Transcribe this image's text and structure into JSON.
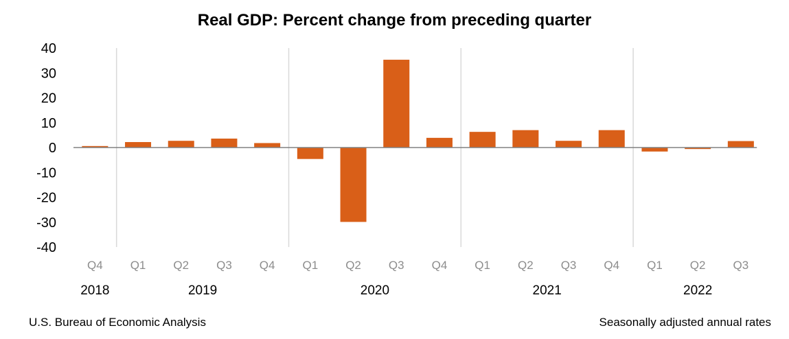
{
  "chart_data": {
    "type": "bar",
    "title": "Real GDP:  Percent change from preceding quarter",
    "categories": [
      "Q4",
      "Q1",
      "Q2",
      "Q3",
      "Q4",
      "Q1",
      "Q2",
      "Q3",
      "Q4",
      "Q1",
      "Q2",
      "Q3",
      "Q4",
      "Q1",
      "Q2",
      "Q3"
    ],
    "category_years": [
      "2018",
      "2019",
      "2019",
      "2019",
      "2019",
      "2020",
      "2020",
      "2020",
      "2020",
      "2021",
      "2021",
      "2021",
      "2021",
      "2022",
      "2022",
      "2022"
    ],
    "year_labels": [
      "2018",
      "2019",
      "2020",
      "2021",
      "2022"
    ],
    "values": [
      0.6,
      2.2,
      2.7,
      3.6,
      1.8,
      -4.6,
      -29.9,
      35.3,
      3.9,
      6.3,
      7.0,
      2.7,
      7.0,
      -1.6,
      -0.6,
      2.6
    ],
    "ylim": [
      -40,
      40
    ],
    "yticks": [
      40,
      30,
      20,
      10,
      0,
      -10,
      -20,
      -30,
      -40
    ],
    "xlabel": "",
    "ylabel": "",
    "grid": false,
    "legend": "none",
    "bar_color": "#D95F18"
  },
  "footer": {
    "source": "U.S. Bureau of Economic Analysis",
    "note": "Seasonally adjusted annual rates"
  }
}
